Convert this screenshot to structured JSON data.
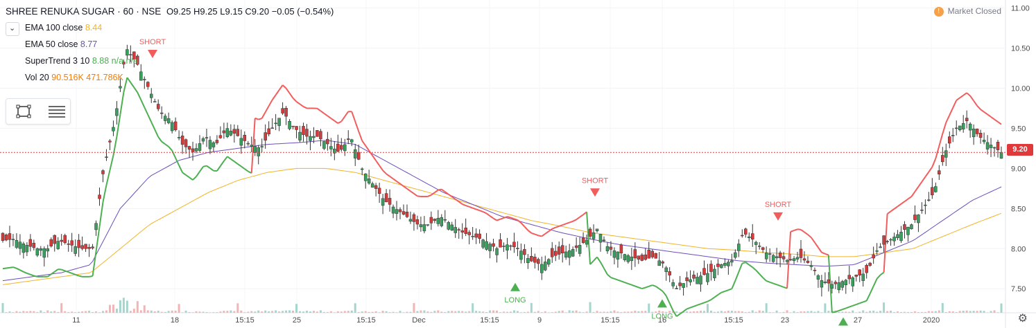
{
  "header": {
    "symbol": "SHREE RENUKA SUGAR · 60 · NSE",
    "ohlc": "O9.25  H9.25  L9.15  C9.20  −0.05 (−0.54%)"
  },
  "indicators": [
    {
      "name": "EMA 100 close",
      "value": "8.44",
      "color": "#f0b429"
    },
    {
      "name": "EMA 50 close",
      "value": "8.77",
      "color": "#6b4fbb"
    },
    {
      "name": "SuperTrend 3 10",
      "value": "8.88  n/a  n/a",
      "color": "#4caf50"
    },
    {
      "name": "Vol 20",
      "value": "90.516K  471.786K",
      "color": "#f57c00"
    }
  ],
  "status": {
    "label": "Market Closed",
    "icon": "warning-icon"
  },
  "price_label": "9.20",
  "colors": {
    "up": "#3a9e5f",
    "down": "#d23c3c",
    "st_up": "#4caf50",
    "st_down": "#f25c5c",
    "ema50": "#6b4fbb",
    "ema100": "#f0b429",
    "vol_up": "#a5d6cd",
    "vol_down": "#f4b4b4"
  },
  "chart_data": {
    "type": "candlestick",
    "ylim": [
      7.2,
      11.1
    ],
    "y_ticks": [
      "7.50",
      "8.00",
      "8.50",
      "9.00",
      "9.50",
      "10.00",
      "10.50",
      "11.00"
    ],
    "x_ticks": [
      "11",
      "18",
      "15:15",
      "25",
      "15:15",
      "Dec",
      "15:15",
      "9",
      "15:15",
      "16",
      "15:15",
      "23",
      "27",
      "2020"
    ],
    "last_close": 9.2,
    "close_path": [
      8.1,
      8.12,
      8.05,
      8.0,
      8.0,
      8.1,
      8.05,
      8.0,
      8.0,
      9.0,
      9.6,
      10.5,
      10.3,
      10.0,
      9.7,
      9.6,
      9.3,
      9.2,
      9.4,
      9.3,
      9.5,
      9.4,
      9.3,
      9.25,
      9.5,
      9.7,
      9.5,
      9.4,
      9.4,
      9.3,
      9.2,
      9.4,
      9.0,
      8.8,
      8.6,
      8.5,
      8.4,
      8.3,
      8.3,
      8.4,
      8.3,
      8.2,
      8.15,
      8.1,
      8.0,
      8.05,
      8.0,
      7.85,
      7.8,
      7.9,
      7.95,
      8.0,
      8.1,
      8.25,
      8.0,
      7.95,
      7.9,
      7.85,
      7.9,
      7.8,
      7.5,
      7.6,
      7.65,
      7.7,
      7.8,
      7.85,
      8.2,
      8.1,
      7.95,
      7.9,
      7.85,
      7.9,
      7.8,
      7.6,
      7.55,
      7.6,
      7.65,
      7.7,
      8.0,
      8.1,
      8.2,
      8.3,
      8.5,
      8.7,
      9.2,
      9.5,
      9.6,
      9.4,
      9.3,
      9.2
    ],
    "candle_count": 290,
    "ema50_path": [
      7.6,
      7.65,
      7.7,
      7.8,
      8.5,
      8.9,
      9.1,
      9.2,
      9.25,
      9.3,
      9.32,
      9.35,
      9.3,
      9.1,
      8.9,
      8.7,
      8.55,
      8.4,
      8.3,
      8.2,
      8.12,
      8.05,
      8.0,
      7.95,
      7.9,
      7.85,
      7.82,
      7.8,
      7.78,
      7.8,
      7.95,
      8.1,
      8.35,
      8.6,
      8.77
    ],
    "ema100_path": [
      7.55,
      7.6,
      7.65,
      7.7,
      8.0,
      8.3,
      8.5,
      8.7,
      8.85,
      8.95,
      9.0,
      9.0,
      8.95,
      8.85,
      8.75,
      8.65,
      8.55,
      8.45,
      8.35,
      8.28,
      8.2,
      8.15,
      8.1,
      8.05,
      8.0,
      7.98,
      7.95,
      7.93,
      7.9,
      7.9,
      7.95,
      8.0,
      8.15,
      8.3,
      8.44
    ],
    "signals": [
      {
        "type": "SHORT",
        "label": "SHORT"
      },
      {
        "type": "LONG",
        "label": "LONG"
      },
      {
        "type": "SHORT",
        "label": "SHORT"
      },
      {
        "type": "LONG",
        "label": "LONG"
      },
      {
        "type": "SHORT",
        "label": "SHORT"
      },
      {
        "type": "LONG",
        "label": "LONG"
      }
    ],
    "grid": true
  }
}
